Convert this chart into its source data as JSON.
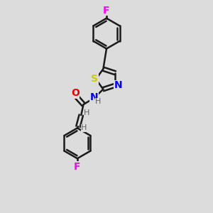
{
  "background_color": "#dcdcdc",
  "bond_color": "#1a1a1a",
  "bond_width": 1.8,
  "atom_colors": {
    "F_top": "#ff00ff",
    "F_bottom": "#ff00ff",
    "S": "#cccc00",
    "N": "#0000ee",
    "O": "#ee0000",
    "H": "#606060"
  },
  "font_size_main": 10,
  "font_size_h": 8,
  "figsize": [
    3.0,
    3.0
  ],
  "dpi": 100
}
